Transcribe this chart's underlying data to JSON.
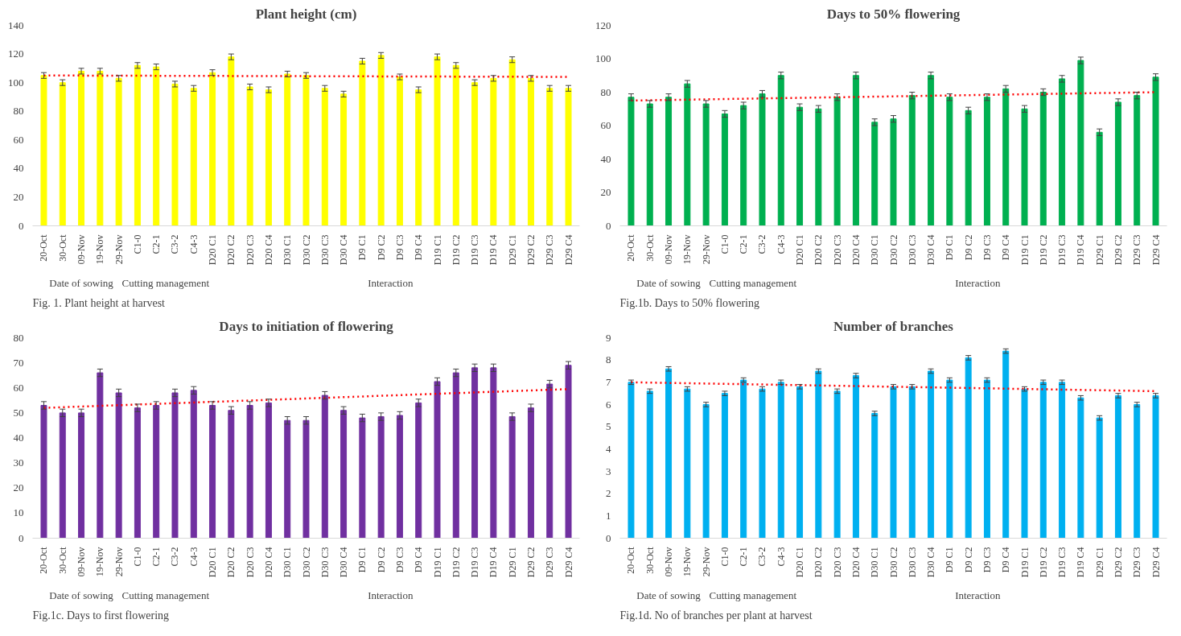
{
  "chart_data": [
    {
      "type": "bar",
      "title": "Plant height (cm)",
      "categories": [
        "20-Oct",
        "30-Oct",
        "09-Nov",
        "19-Nov",
        "29-Nov",
        "C1-0",
        "C2-1",
        "C3-2",
        "C4-3",
        "D20 C1",
        "D20 C2",
        "D20 C3",
        "D20 C4",
        "D30 C1",
        "D30 C2",
        "D30 C3",
        "D30 C4",
        "D9 C1",
        "D9 C2",
        "D9 C3",
        "D9 C4",
        "D19 C1",
        "D19 C2",
        "D19 C3",
        "D19 C4",
        "D29 C1",
        "D29 C2",
        "D29 C3",
        "D29 C4"
      ],
      "series": [
        {
          "color": "#ffff00",
          "errors": [
            2,
            2,
            2,
            2,
            2,
            2,
            2,
            2,
            2,
            2,
            2,
            2,
            2,
            2,
            2,
            2,
            2,
            2,
            2,
            2,
            2,
            2,
            2,
            2,
            2,
            2,
            2,
            2,
            2
          ],
          "values": [
            105,
            100,
            108,
            108,
            103,
            112,
            111,
            99,
            96,
            107,
            118,
            97,
            95,
            106,
            105,
            96,
            92,
            115,
            119,
            104,
            95,
            118,
            112,
            100,
            103,
            116,
            103,
            96,
            96
          ]
        },
        {
          "type": "line",
          "color": "#ff0000",
          "line_style": "dotted",
          "x": [
            "20-Oct",
            "D29 C4"
          ],
          "values": [
            105,
            104
          ]
        }
      ],
      "ylim": [
        0,
        140
      ],
      "yticks": [
        0,
        20,
        40,
        60,
        80,
        100,
        120,
        140
      ],
      "grid": false,
      "annotations": [
        "Date of sowing",
        "Cutting management",
        "Interaction",
        "Fig. 1. Plant height at harvest"
      ]
    },
    {
      "type": "bar",
      "title": "Days to 50% flowering",
      "categories": [
        "20-Oct",
        "30-Oct",
        "09-Nov",
        "19-Nov",
        "29-Nov",
        "C1-0",
        "C2-1",
        "C3-2",
        "C4-3",
        "D20 C1",
        "D20 C2",
        "D20 C3",
        "D20 C4",
        "D30 C1",
        "D30 C2",
        "D30 C3",
        "D30 C4",
        "D9 C1",
        "D9 C2",
        "D9 C3",
        "D9 C4",
        "D19 C1",
        "D19 C2",
        "D19 C3",
        "D19 C4",
        "D29 C1",
        "D29 C2",
        "D29 C3",
        "D29 C4"
      ],
      "series": [
        {
          "color": "#00b050",
          "errors": [
            2,
            2,
            2,
            2,
            2,
            2,
            2,
            2,
            2,
            2,
            2,
            2,
            2,
            2,
            2,
            2,
            2,
            2,
            2,
            2,
            2,
            2,
            2,
            2,
            2,
            2,
            2,
            2,
            2
          ],
          "values": [
            77,
            73,
            77,
            85,
            73,
            67,
            72,
            79,
            90,
            71,
            70,
            77,
            90,
            62,
            64,
            78,
            90,
            77,
            69,
            77,
            82,
            70,
            80,
            88,
            99,
            56,
            74,
            78,
            89
          ]
        },
        {
          "type": "line",
          "color": "#ff0000",
          "line_style": "dotted",
          "x": [
            "20-Oct",
            "D29 C4"
          ],
          "values": [
            75,
            80
          ]
        }
      ],
      "ylim": [
        0,
        120
      ],
      "yticks": [
        0,
        20,
        40,
        60,
        80,
        100,
        120
      ],
      "grid": false,
      "annotations": [
        "Date of sowing",
        "Cutting management",
        "Interaction",
        "Fig.1b. Days to 50% flowering"
      ]
    },
    {
      "type": "bar",
      "title": "Days to initiation of flowering",
      "categories": [
        "20-Oct",
        "30-Oct",
        "09-Nov",
        "19-Nov",
        "29-Nov",
        "C1-0",
        "C2-1",
        "C3-2",
        "C4-3",
        "D20 C1",
        "D20 C2",
        "D20 C3",
        "D20 C4",
        "D30 C1",
        "D30 C2",
        "D30 C3",
        "D30 C4",
        "D9 C1",
        "D9 C2",
        "D9 C3",
        "D9 C4",
        "D19 C1",
        "D19 C2",
        "D19 C3",
        "D19 C4",
        "D29 C1",
        "D29 C2",
        "D29 C3",
        "D29 C4"
      ],
      "series": [
        {
          "color": "#7030a0",
          "errors": [
            1.5,
            1.5,
            1.5,
            1.5,
            1.5,
            1.5,
            1.5,
            1.5,
            1.5,
            1.5,
            1.5,
            1.5,
            1.5,
            1.5,
            1.5,
            1.5,
            1.5,
            1.5,
            1.5,
            1.5,
            1.5,
            1.5,
            1.5,
            1.5,
            1.5,
            1.5,
            1.5,
            1.5,
            1.5
          ],
          "values": [
            53,
            50,
            50,
            66,
            58,
            52,
            53,
            58,
            59,
            53,
            51,
            53,
            54,
            47,
            47,
            57,
            51,
            48,
            48.5,
            49,
            54,
            62.5,
            66,
            68,
            68,
            48.5,
            52,
            61.5,
            69
          ]
        },
        {
          "type": "line",
          "color": "#ff0000",
          "line_style": "dotted",
          "x": [
            "20-Oct",
            "D29 C4"
          ],
          "values": [
            52,
            59.5
          ]
        }
      ],
      "ylim": [
        0,
        80
      ],
      "yticks": [
        0,
        10,
        20,
        30,
        40,
        50,
        60,
        70,
        80
      ],
      "grid": false,
      "annotations": [
        "Date of sowing",
        "Cutting management",
        "Interaction",
        "Fig.1c. Days to first flowering"
      ]
    },
    {
      "type": "bar",
      "title": "Number of branches",
      "categories": [
        "20-Oct",
        "30-Oct",
        "09-Nov",
        "19-Nov",
        "29-Nov",
        "C1-0",
        "C2-1",
        "C3-2",
        "C4-3",
        "D20 C1",
        "D20 C2",
        "D20 C3",
        "D20 C4",
        "D30 C1",
        "D30 C2",
        "D30 C3",
        "D30 C4",
        "D9 C1",
        "D9 C2",
        "D9 C3",
        "D9 C4",
        "D19 C1",
        "D19 C2",
        "D19 C3",
        "D19 C4",
        "D29 C1",
        "D29 C2",
        "D29 C3",
        "D29 C4"
      ],
      "series": [
        {
          "color": "#00b0f0",
          "errors": [
            0.1,
            0.1,
            0.1,
            0.1,
            0.1,
            0.1,
            0.1,
            0.1,
            0.1,
            0.1,
            0.1,
            0.1,
            0.1,
            0.1,
            0.1,
            0.1,
            0.1,
            0.1,
            0.1,
            0.1,
            0.1,
            0.1,
            0.1,
            0.1,
            0.1,
            0.1,
            0.1,
            0.1,
            0.1
          ],
          "values": [
            7.0,
            6.6,
            7.6,
            6.7,
            6.0,
            6.5,
            7.1,
            6.7,
            7.0,
            6.8,
            7.5,
            6.6,
            7.3,
            5.6,
            6.8,
            6.8,
            7.5,
            7.1,
            8.1,
            7.1,
            8.4,
            6.7,
            7.0,
            7.0,
            6.3,
            5.4,
            6.4,
            6.0,
            6.4
          ]
        },
        {
          "type": "line",
          "color": "#ff0000",
          "line_style": "dotted",
          "x": [
            "20-Oct",
            "D29 C4"
          ],
          "values": [
            7.0,
            6.6
          ]
        }
      ],
      "ylim": [
        0,
        9
      ],
      "yticks": [
        0,
        1,
        2,
        3,
        4,
        5,
        6,
        7,
        8,
        9
      ],
      "grid": false,
      "annotations": [
        "Date of sowing",
        "Cutting management",
        "Interaction",
        "Fig.1d. No of branches per plant at harvest"
      ]
    }
  ]
}
